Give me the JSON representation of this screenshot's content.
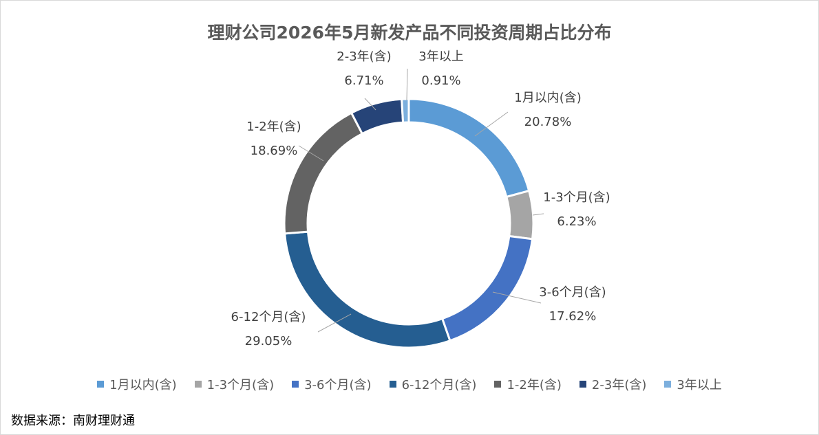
{
  "chart_data": {
    "type": "donut",
    "title": "理财公司2026年5月新发产品不同投资周期占比分布",
    "series": [
      {
        "name": "1月以内(含)",
        "value": 20.78,
        "label": "20.78%",
        "color": "#5b9bd5"
      },
      {
        "name": "1-3个月(含)",
        "value": 6.23,
        "label": "6.23%",
        "color": "#a5a5a5"
      },
      {
        "name": "3-6个月(含)",
        "value": 17.62,
        "label": "17.62%",
        "color": "#4472c4"
      },
      {
        "name": "6-12个月(含)",
        "value": 29.05,
        "label": "29.05%",
        "color": "#255e91"
      },
      {
        "name": "1-2年(含)",
        "value": 18.69,
        "label": "18.69%",
        "color": "#636363"
      },
      {
        "name": "2-3年(含)",
        "value": 6.71,
        "label": "6.71%",
        "color": "#264478"
      },
      {
        "name": "3年以上",
        "value": 0.91,
        "label": "0.91%",
        "color": "#7cafdd"
      }
    ],
    "legend_position": "bottom"
  },
  "source": "数据来源：南财理财通"
}
